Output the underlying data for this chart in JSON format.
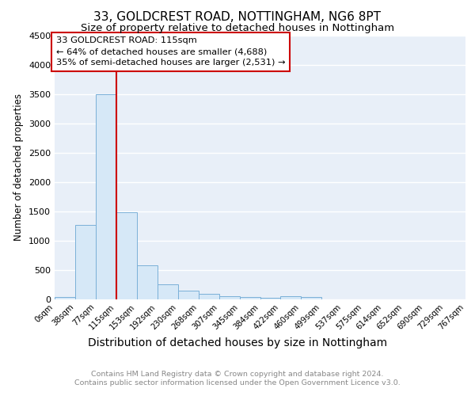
{
  "title1": "33, GOLDCREST ROAD, NOTTINGHAM, NG6 8PT",
  "title2": "Size of property relative to detached houses in Nottingham",
  "xlabel": "Distribution of detached houses by size in Nottingham",
  "ylabel": "Number of detached properties",
  "bin_labels": [
    "0sqm",
    "38sqm",
    "77sqm",
    "115sqm",
    "153sqm",
    "192sqm",
    "230sqm",
    "268sqm",
    "307sqm",
    "345sqm",
    "384sqm",
    "422sqm",
    "460sqm",
    "499sqm",
    "537sqm",
    "575sqm",
    "614sqm",
    "652sqm",
    "690sqm",
    "729sqm",
    "767sqm"
  ],
  "bar_values": [
    40,
    1260,
    3500,
    1480,
    580,
    250,
    140,
    90,
    50,
    30,
    20,
    50,
    40,
    0,
    0,
    0,
    0,
    0,
    0,
    0
  ],
  "bar_color": "#d6e8f7",
  "bar_edge_color": "#7ab0d8",
  "vline_x_index": 3,
  "vline_color": "#cc0000",
  "annotation_text": "33 GOLDCREST ROAD: 115sqm\n← 64% of detached houses are smaller (4,688)\n35% of semi-detached houses are larger (2,531) →",
  "annotation_box_color": "#ffffff",
  "annotation_box_edge": "#cc0000",
  "ylim": [
    0,
    4500
  ],
  "yticks": [
    0,
    500,
    1000,
    1500,
    2000,
    2500,
    3000,
    3500,
    4000,
    4500
  ],
  "background_color": "#e8eff8",
  "footer_text": "Contains HM Land Registry data © Crown copyright and database right 2024.\nContains public sector information licensed under the Open Government Licence v3.0.",
  "grid_color": "#ffffff",
  "title1_fontsize": 11,
  "title2_fontsize": 9.5,
  "xlabel_fontsize": 10,
  "ylabel_fontsize": 8.5,
  "footer_fontsize": 6.8
}
